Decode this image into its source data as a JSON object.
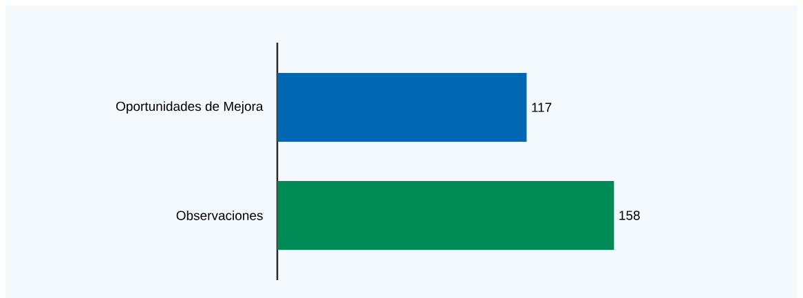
{
  "chart_data": {
    "type": "bar",
    "orientation": "horizontal",
    "categories": [
      "Oportunidades de Mejora",
      "Observaciones"
    ],
    "values": [
      117,
      158
    ],
    "colors": [
      "#0068b3",
      "#008a55"
    ],
    "data_labels": true
  }
}
